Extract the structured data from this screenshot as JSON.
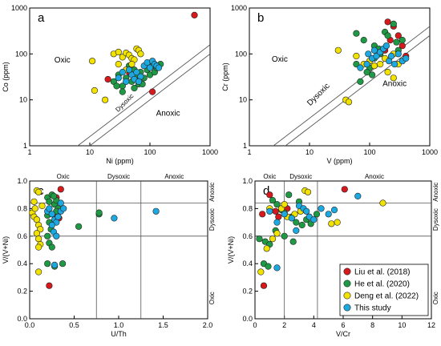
{
  "chart_data": [
    {
      "type": "scatter",
      "panel_label": "a",
      "xlabel": "Ni (ppm)",
      "ylabel": "Co (ppm)",
      "xscale": "log",
      "yscale": "log",
      "xlim": [
        1,
        1000
      ],
      "ylim": [
        1,
        1000
      ],
      "xticks": [
        "1",
        "10",
        "100",
        "1000"
      ],
      "yticks": [
        "1",
        "10",
        "100",
        "1000"
      ],
      "boundary_lines": [
        {
          "label": "Dysoxic"
        },
        {
          "label": ""
        }
      ],
      "regions": [
        "Oxic",
        "Anoxic"
      ],
      "series": [
        {
          "name": "Liu et al. (2018)",
          "color": "#d7191c",
          "points": [
            [
              550,
              700
            ],
            [
              110,
              15
            ],
            [
              20,
              28
            ],
            [
              60,
              28
            ],
            [
              45,
              40
            ]
          ]
        },
        {
          "name": "He et al. (2020)",
          "color": "#1e9a45",
          "points": [
            [
              25,
              25
            ],
            [
              35,
              20
            ],
            [
              40,
              30
            ],
            [
              50,
              25
            ],
            [
              55,
              45
            ],
            [
              60,
              35
            ],
            [
              65,
              22
            ],
            [
              70,
              40
            ],
            [
              80,
              30
            ],
            [
              90,
              45
            ],
            [
              100,
              35
            ],
            [
              110,
              55
            ],
            [
              120,
              40
            ],
            [
              130,
              50
            ],
            [
              45,
              55
            ],
            [
              30,
              35
            ],
            [
              28,
              20
            ],
            [
              35,
              15
            ],
            [
              55,
              18
            ],
            [
              75,
              22
            ],
            [
              150,
              60
            ]
          ]
        },
        {
          "name": "Deng et al. (2022)",
          "color": "#f2e200",
          "points": [
            [
              11,
              70
            ],
            [
              18,
              10
            ],
            [
              25,
              100
            ],
            [
              30,
              110
            ],
            [
              35,
              85
            ],
            [
              40,
              105
            ],
            [
              45,
              95
            ],
            [
              50,
              80
            ],
            [
              55,
              75
            ],
            [
              60,
              130
            ],
            [
              65,
              120
            ],
            [
              70,
              100
            ],
            [
              40,
              45
            ],
            [
              30,
              60
            ],
            [
              50,
              60
            ],
            [
              12,
              16
            ]
          ]
        },
        {
          "name": "This study",
          "color": "#1ca9e1",
          "points": [
            [
              30,
              30
            ],
            [
              40,
              25
            ],
            [
              50,
              35
            ],
            [
              55,
              28
            ],
            [
              60,
              40
            ],
            [
              70,
              32
            ],
            [
              80,
              55
            ],
            [
              90,
              65
            ],
            [
              100,
              50
            ],
            [
              110,
              70
            ],
            [
              120,
              60
            ],
            [
              130,
              55
            ],
            [
              140,
              50
            ],
            [
              35,
              40
            ],
            [
              45,
              45
            ],
            [
              65,
              25
            ]
          ]
        }
      ]
    },
    {
      "type": "scatter",
      "panel_label": "b",
      "xlabel": "V (ppm)",
      "ylabel": "Cr (ppm)",
      "xscale": "log",
      "yscale": "log",
      "xlim": [
        1,
        1000
      ],
      "ylim": [
        1,
        1000
      ],
      "xticks": [
        "1",
        "10",
        "100",
        "1000"
      ],
      "yticks": [
        "1",
        "10",
        "100",
        "1000"
      ],
      "boundary_lines": [
        {
          "label": "Dysoxic"
        },
        {
          "label": ""
        }
      ],
      "regions": [
        "Oxic",
        "Anoxic"
      ],
      "series": [
        {
          "name": "Liu et al. (2018)",
          "color": "#d7191c",
          "points": [
            [
              200,
              500
            ],
            [
              250,
              400
            ],
            [
              300,
              250
            ],
            [
              350,
              150
            ],
            [
              220,
              200
            ],
            [
              400,
              90
            ],
            [
              180,
              120
            ]
          ]
        },
        {
          "name": "He et al. (2020)",
          "color": "#1e9a45",
          "points": [
            [
              60,
              280
            ],
            [
              80,
              200
            ],
            [
              100,
              50
            ],
            [
              120,
              150
            ],
            [
              150,
              100
            ],
            [
              180,
              300
            ],
            [
              200,
              250
            ],
            [
              250,
              450
            ],
            [
              280,
              180
            ],
            [
              300,
              120
            ],
            [
              350,
              200
            ],
            [
              120,
              80
            ],
            [
              90,
              40
            ],
            [
              70,
              25
            ],
            [
              110,
              35
            ],
            [
              140,
              130
            ],
            [
              60,
              60
            ]
          ]
        },
        {
          "name": "Deng et al. (2022)",
          "color": "#f2e200",
          "points": [
            [
              30,
              120
            ],
            [
              40,
              10
            ],
            [
              45,
              9
            ],
            [
              80,
              60
            ],
            [
              100,
              70
            ],
            [
              120,
              55
            ],
            [
              150,
              60
            ],
            [
              200,
              40
            ],
            [
              250,
              30
            ],
            [
              300,
              60
            ],
            [
              180,
              80
            ],
            [
              250,
              100
            ],
            [
              60,
              90
            ]
          ]
        },
        {
          "name": "This study",
          "color": "#1ca9e1",
          "points": [
            [
              70,
              50
            ],
            [
              90,
              60
            ],
            [
              110,
              80
            ],
            [
              130,
              90
            ],
            [
              150,
              110
            ],
            [
              170,
              130
            ],
            [
              190,
              150
            ],
            [
              210,
              70
            ],
            [
              230,
              90
            ],
            [
              260,
              60
            ],
            [
              300,
              100
            ],
            [
              350,
              70
            ],
            [
              400,
              80
            ],
            [
              120,
              120
            ],
            [
              95,
              100
            ]
          ]
        }
      ]
    },
    {
      "type": "scatter",
      "panel_label": "c",
      "xlabel": "U/Th",
      "ylabel": "V/(V+Ni)",
      "xlim": [
        0,
        2.0
      ],
      "ylim": [
        0,
        1.0
      ],
      "xticks": [
        "0.0",
        "0.5",
        "1.0",
        "1.5",
        "2.0"
      ],
      "yticks": [
        "0.0",
        "0.2",
        "0.4",
        "0.6",
        "0.8",
        "1.0"
      ],
      "top_regions": [
        "Oxic",
        "Dysoxic",
        "Anoxic"
      ],
      "right_regions": [
        "Anoxic",
        "Dysoxic",
        "Oxic"
      ],
      "hlines": [
        0.6,
        0.84
      ],
      "vlines": [
        0.75,
        1.25
      ],
      "series": [
        {
          "name": "Liu et al. (2018)",
          "color": "#d7191c",
          "points": [
            [
              0.22,
              0.24
            ],
            [
              0.35,
              0.94
            ],
            [
              0.3,
              0.88
            ],
            [
              0.28,
              0.75
            ],
            [
              0.33,
              0.73
            ]
          ]
        },
        {
          "name": "He et al. (2020)",
          "color": "#1e9a45",
          "points": [
            [
              0.2,
              0.88
            ],
            [
              0.22,
              0.85
            ],
            [
              0.25,
              0.9
            ],
            [
              0.28,
              0.83
            ],
            [
              0.3,
              0.86
            ],
            [
              0.32,
              0.8
            ],
            [
              0.2,
              0.75
            ],
            [
              0.22,
              0.7
            ],
            [
              0.24,
              0.65
            ],
            [
              0.2,
              0.6
            ],
            [
              0.22,
              0.55
            ],
            [
              0.25,
              0.52
            ],
            [
              0.2,
              0.4
            ],
            [
              0.28,
              0.38
            ],
            [
              0.37,
              0.4
            ],
            [
              0.55,
              0.67
            ],
            [
              0.78,
              0.76
            ],
            [
              0.78,
              0.77
            ],
            [
              0.27,
              0.89
            ],
            [
              0.3,
              0.78
            ]
          ]
        },
        {
          "name": "Deng et al. (2022)",
          "color": "#f2e200",
          "points": [
            [
              0.05,
              0.85
            ],
            [
              0.08,
              0.93
            ],
            [
              0.1,
              0.92
            ],
            [
              0.03,
              0.77
            ],
            [
              0.05,
              0.74
            ],
            [
              0.08,
              0.72
            ],
            [
              0.1,
              0.68
            ],
            [
              0.12,
              0.65
            ],
            [
              0.08,
              0.62
            ],
            [
              0.1,
              0.58
            ],
            [
              0.12,
              0.54
            ],
            [
              0.1,
              0.52
            ],
            [
              0.1,
              0.34
            ],
            [
              0.06,
              0.8
            ],
            [
              0.14,
              0.82
            ]
          ]
        },
        {
          "name": "This study",
          "color": "#1ca9e1",
          "points": [
            [
              0.2,
              0.78
            ],
            [
              0.22,
              0.8
            ],
            [
              0.25,
              0.76
            ],
            [
              0.28,
              0.72
            ],
            [
              0.3,
              0.7
            ],
            [
              0.32,
              0.74
            ],
            [
              0.35,
              0.78
            ],
            [
              0.38,
              0.8
            ],
            [
              0.25,
              0.68
            ],
            [
              0.27,
              0.63
            ],
            [
              0.3,
              0.6
            ],
            [
              0.28,
              0.39
            ],
            [
              0.95,
              0.73
            ],
            [
              1.42,
              0.78
            ],
            [
              0.35,
              0.84
            ]
          ]
        }
      ]
    },
    {
      "type": "scatter",
      "panel_label": "d",
      "xlabel": "V/Cr",
      "ylabel": "V/(V+Ni)",
      "xlim": [
        0,
        12
      ],
      "ylim": [
        0,
        1.0
      ],
      "xticks": [
        "0",
        "2",
        "4",
        "6",
        "8",
        "10",
        "12"
      ],
      "yticks": [
        "0.0",
        "0.2",
        "0.4",
        "0.6",
        "0.8",
        "1.0"
      ],
      "top_regions": [
        "Oxic",
        "Dysoxic",
        "Anoxic"
      ],
      "right_regions": [
        "Anoxic",
        "Dysoxic",
        "Oxic"
      ],
      "hlines": [
        0.6,
        0.84
      ],
      "vlines": [
        2,
        4.25
      ],
      "legend_position": "bottom-right",
      "series": [
        {
          "name": "Liu et al. (2018)",
          "color": "#d7191c",
          "points": [
            [
              0.6,
              0.24
            ],
            [
              1.0,
              0.9
            ],
            [
              1.4,
              0.78
            ],
            [
              1.6,
              0.74
            ],
            [
              2.2,
              0.8
            ],
            [
              6.1,
              0.94
            ],
            [
              0.5,
              0.76
            ]
          ]
        },
        {
          "name": "He et al. (2020)",
          "color": "#1e9a45",
          "points": [
            [
              0.3,
              0.58
            ],
            [
              0.7,
              0.56
            ],
            [
              0.6,
              0.4
            ],
            [
              0.9,
              0.38
            ],
            [
              1.0,
              0.54
            ],
            [
              1.2,
              0.86
            ],
            [
              1.5,
              0.83
            ],
            [
              1.8,
              0.79
            ],
            [
              2.0,
              0.77
            ],
            [
              2.3,
              0.9
            ],
            [
              2.5,
              0.74
            ],
            [
              2.8,
              0.7
            ],
            [
              3.2,
              0.68
            ],
            [
              3.5,
              0.72
            ],
            [
              3.8,
              0.69
            ],
            [
              4.2,
              0.76
            ],
            [
              2.0,
              0.6
            ],
            [
              2.6,
              0.56
            ],
            [
              1.4,
              0.64
            ],
            [
              3.0,
              0.85
            ]
          ]
        },
        {
          "name": "Deng et al. (2022)",
          "color": "#f2e200",
          "points": [
            [
              0.4,
              0.34
            ],
            [
              0.8,
              0.51
            ],
            [
              1.2,
              0.58
            ],
            [
              1.5,
              0.62
            ],
            [
              1.8,
              0.8
            ],
            [
              2.2,
              0.74
            ],
            [
              2.7,
              0.76
            ],
            [
              3.1,
              0.78
            ],
            [
              3.4,
              0.93
            ],
            [
              3.6,
              0.92
            ],
            [
              5.2,
              0.69
            ],
            [
              5.6,
              0.7
            ],
            [
              8.7,
              0.84
            ],
            [
              1.0,
              0.8
            ],
            [
              2.0,
              0.83
            ]
          ]
        },
        {
          "name": "This study",
          "color": "#1ca9e1",
          "points": [
            [
              1.0,
              0.78
            ],
            [
              1.5,
              0.7
            ],
            [
              2.0,
              0.76
            ],
            [
              2.5,
              0.73
            ],
            [
              3.0,
              0.82
            ],
            [
              3.3,
              0.8
            ],
            [
              3.7,
              0.74
            ],
            [
              4.0,
              0.72
            ],
            [
              4.5,
              0.8
            ],
            [
              5.0,
              0.76
            ],
            [
              5.4,
              0.79
            ],
            [
              7.0,
              0.89
            ],
            [
              1.5,
              0.37
            ],
            [
              2.8,
              0.64
            ],
            [
              3.5,
              0.78
            ]
          ]
        }
      ]
    }
  ]
}
